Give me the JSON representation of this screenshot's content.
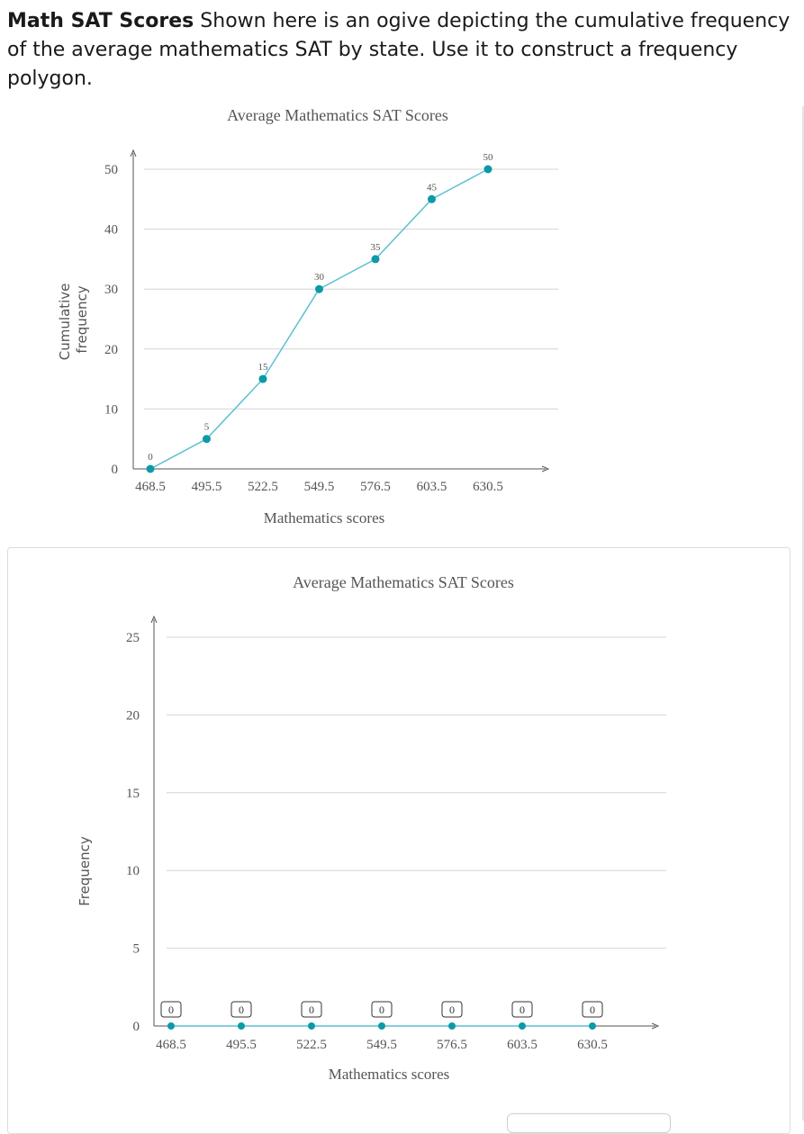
{
  "problem": {
    "heading": "Math SAT Scores",
    "text": "Shown here is an ogive depicting the cumulative frequency of the average mathematics SAT by state. Use it to construct a frequency polygon."
  },
  "chart_data": [
    {
      "type": "line",
      "title": "Average Mathematics SAT Scores",
      "xlabel": "Mathematics scores",
      "ylabel": "Cumulative frequency",
      "x": [
        "468.5",
        "495.5",
        "522.5",
        "549.5",
        "576.5",
        "603.5",
        "630.5"
      ],
      "series": [
        {
          "values": [
            0,
            5,
            15,
            30,
            35,
            45,
            50
          ]
        }
      ],
      "ylim": [
        0,
        50
      ],
      "yticks": [
        0,
        10,
        20,
        30,
        40,
        50
      ],
      "data_labels": true,
      "grid": true,
      "color": "#5bc0d1",
      "marker_color": "#0d99a8"
    },
    {
      "type": "line",
      "title": "Average Mathematics SAT Scores",
      "xlabel": "Mathematics scores",
      "ylabel": "Frequency",
      "x": [
        "468.5",
        "495.5",
        "522.5",
        "549.5",
        "576.5",
        "603.5",
        "630.5"
      ],
      "series": [
        {
          "values": [
            0,
            0,
            0,
            0,
            0,
            0,
            0
          ]
        }
      ],
      "ylim": [
        0,
        25
      ],
      "yticks": [
        0,
        5,
        10,
        15,
        20,
        25
      ],
      "data_labels": true,
      "editable": true,
      "grid": true,
      "color": "#5bc0d1",
      "marker_color": "#0d99a8"
    }
  ]
}
